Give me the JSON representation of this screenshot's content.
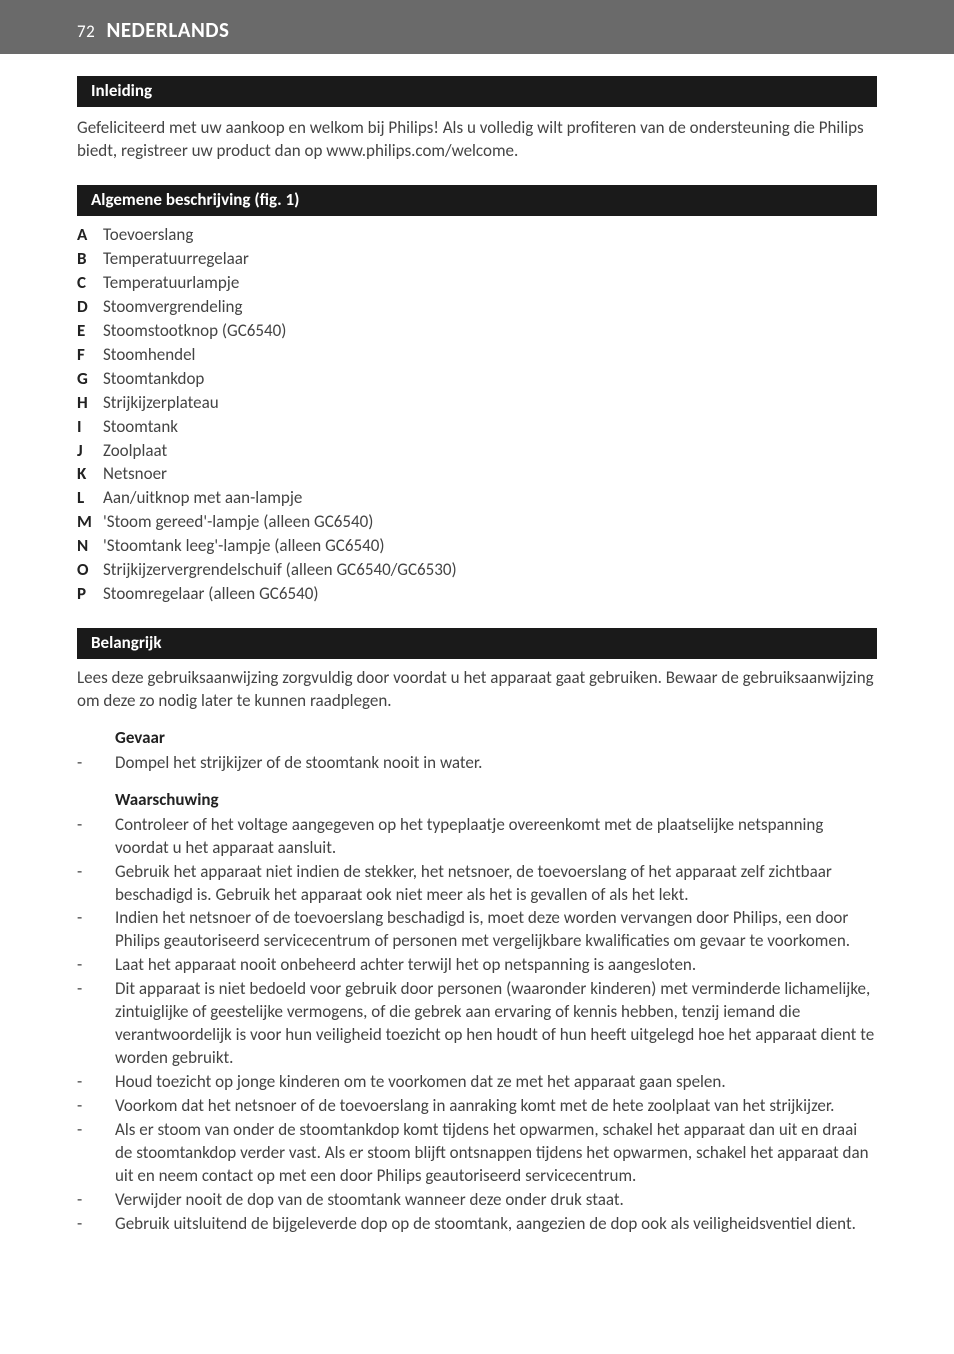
{
  "page": {
    "number": "72",
    "language": "NEDERLANDS",
    "bg_header": "#6a6a6a",
    "bg_section": "#1a1a1a",
    "text_color": "#444444"
  },
  "sections": {
    "s1_title": "Inleiding",
    "s1_body": "Gefeliciteerd met uw aankoop en welkom bij Philips! Als u volledig wilt profiteren van de ondersteuning die Philips biedt, registreer uw product dan op www.philips.com/welcome.",
    "s2_title": "Algemene beschrijving (fig. 1)",
    "s3_title": "Belangrijk",
    "s3_body": "Lees deze gebruiksaanwijzing zorgvuldig door voordat u het apparaat gaat gebruiken. Bewaar de gebruiksaanwijzing om deze zo nodig later te kunnen raadplegen."
  },
  "defs": {
    "A": "Toevoerslang",
    "B": "Temperatuurregelaar",
    "C": "Temperatuurlampje",
    "D": "Stoomvergrendeling",
    "E": "Stoomstootknop (GC6540)",
    "F": "Stoomhendel",
    "G": "Stoomtankdop",
    "H": "Strijkijzerplateau",
    "I": "Stoomtank",
    "J": "Zoolplaat",
    "K": "Netsnoer",
    "L": "Aan/uitknop met aan-lampje",
    "M": "'Stoom gereed'-lampje (alleen GC6540)",
    "N": "'Stoomtank leeg'-lampje (alleen GC6540)",
    "O": "Strijkijzervergrendelschuif (alleen GC6540/GC6530)",
    "P": "Stoomregelaar (alleen GC6540)"
  },
  "danger": {
    "heading": "Gevaar",
    "items": {
      "0": "Dompel het strijkijzer of de stoomtank nooit in water."
    }
  },
  "warning": {
    "heading": "Waarschuwing",
    "items": {
      "0": "Controleer of het voltage aangegeven op het typeplaatje overeenkomt met de plaatselijke netspanning voordat u het apparaat aansluit.",
      "1": "Gebruik het apparaat niet indien de stekker, het netsnoer, de toevoerslang of het apparaat zelf zichtbaar beschadigd is. Gebruik het apparaat ook niet meer als het is gevallen of als het lekt.",
      "2": "Indien het netsnoer of de toevoerslang beschadigd is, moet deze worden vervangen door Philips, een door Philips geautoriseerd servicecentrum of personen met vergelijkbare kwalificaties om gevaar te voorkomen.",
      "3": "Laat het apparaat nooit onbeheerd achter terwijl het op netspanning is aangesloten.",
      "4": "Dit apparaat is niet bedoeld voor gebruik door personen (waaronder kinderen) met verminderde lichamelijke, zintuiglijke of geestelijke vermogens, of die gebrek aan ervaring of kennis hebben, tenzij iemand die verantwoordelijk is voor hun veiligheid toezicht op hen houdt of hun heeft uitgelegd hoe het apparaat dient te worden gebruikt.",
      "5": "Houd toezicht op jonge kinderen om te voorkomen dat ze met het apparaat gaan spelen.",
      "6": "Voorkom dat het netsnoer of de toevoerslang in aanraking komt met de hete zoolplaat van het strijkijzer.",
      "7": "Als er stoom van onder de stoomtankdop komt tijdens het opwarmen, schakel het apparaat dan uit en draai de stoomtankdop verder vast. Als er stoom blijft ontsnappen tijdens het opwarmen, schakel het apparaat dan uit en neem contact op met een door Philips geautoriseerd servicecentrum.",
      "8": "Verwijder nooit de dop van de stoomtank wanneer deze onder druk staat.",
      "9": "Gebruik uitsluitend de bijgeleverde dop op de stoomtank, aangezien de dop ook als veiligheidsventiel dient."
    }
  }
}
